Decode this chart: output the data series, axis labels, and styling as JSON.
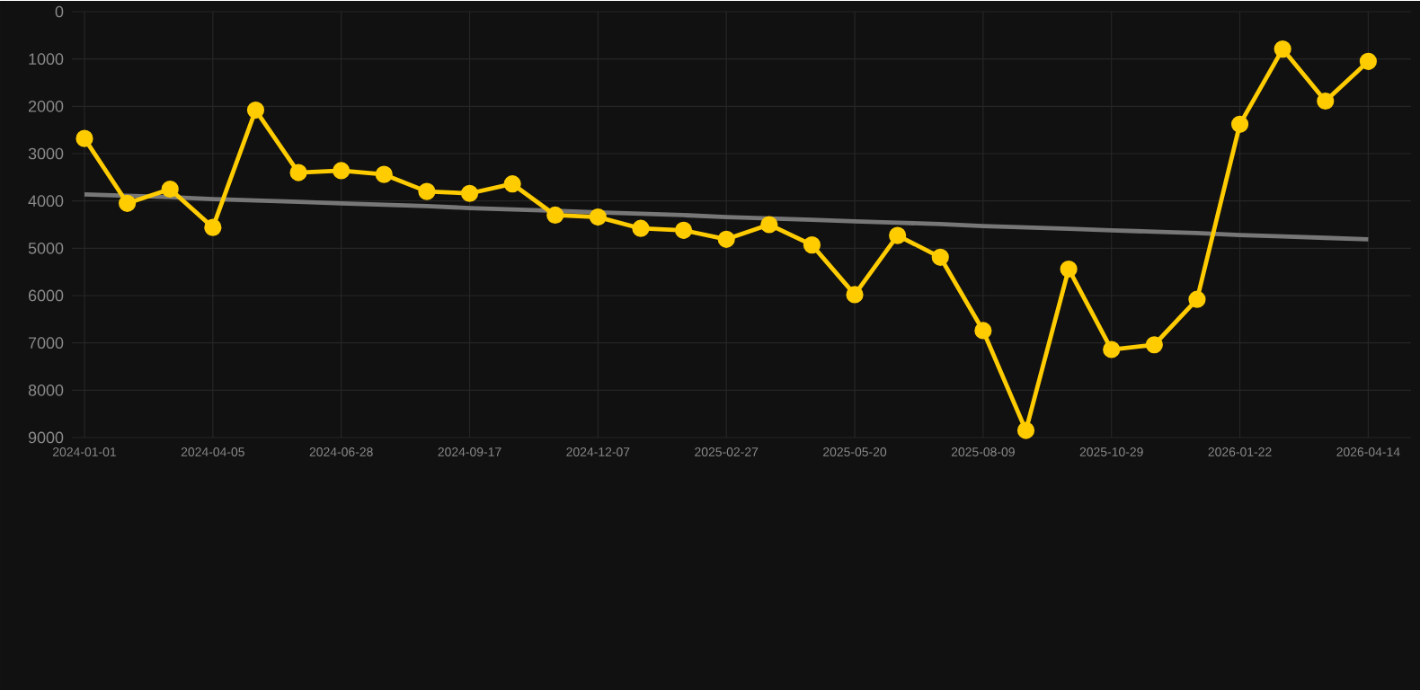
{
  "chart_data": {
    "type": "line",
    "categories": [
      "2024-01-01",
      null,
      null,
      "2024-04-05",
      null,
      null,
      "2024-06-28",
      null,
      null,
      "2024-09-17",
      null,
      null,
      "2024-12-07",
      null,
      null,
      "2025-02-27",
      null,
      null,
      "2025-05-20",
      null,
      null,
      "2025-08-09",
      null,
      null,
      "2025-10-29",
      null,
      null,
      "2026-01-22",
      null,
      null,
      "2026-04-14"
    ],
    "series": [
      {
        "color": "#ffcc00",
        "marker": "circle",
        "values": [
          2680,
          4050,
          3750,
          4560,
          2080,
          3400,
          3360,
          3440,
          3800,
          3840,
          3640,
          4300,
          4340,
          4580,
          4620,
          4810,
          4500,
          4930,
          5980,
          4730,
          5190,
          6740,
          8850,
          5440,
          7140,
          7040,
          6080,
          2380,
          790,
          1890,
          1050
        ]
      },
      {
        "type": "line",
        "color": "#777777",
        "marker": "none",
        "values": [
          3860,
          3890,
          3920,
          3960,
          3990,
          4020,
          4050,
          4080,
          4110,
          4150,
          4180,
          4210,
          4240,
          4270,
          4300,
          4340,
          4370,
          4400,
          4430,
          4460,
          4490,
          4530,
          4560,
          4590,
          4620,
          4650,
          4680,
          4720,
          4750,
          4780,
          4810
        ]
      }
    ],
    "ylim": [
      9000,
      0
    ],
    "yticks": [
      0,
      1000,
      2000,
      3000,
      4000,
      5000,
      6000,
      7000,
      8000,
      9000
    ],
    "grid": true
  }
}
